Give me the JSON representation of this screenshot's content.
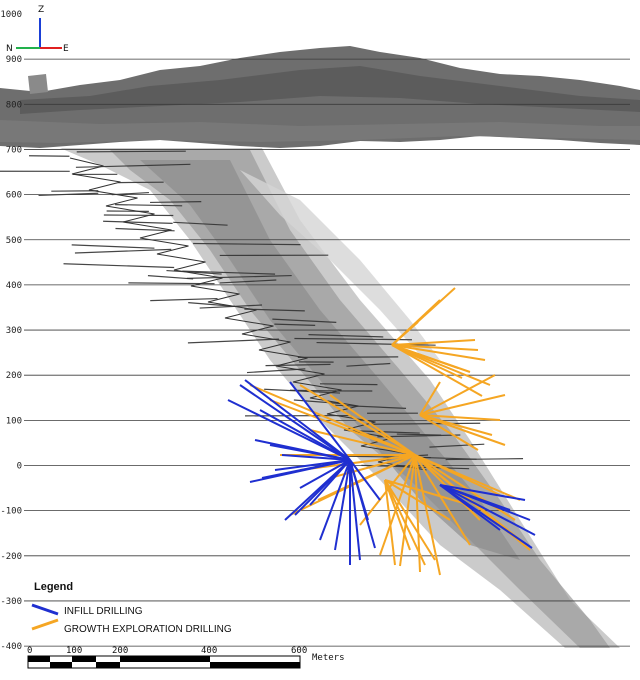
{
  "elevation_axis": {
    "ticks": [
      "1000",
      "900",
      "800",
      "700",
      "600",
      "500",
      "400",
      "300",
      "200",
      "100",
      "0",
      "-100",
      "-200",
      "-300",
      "-400"
    ]
  },
  "orientation": {
    "up": "Z",
    "left": "N",
    "right": "E",
    "colors": {
      "up": "#1a3fd6",
      "left": "#22b14c",
      "right": "#e02020"
    }
  },
  "legend": {
    "title": "Legend",
    "items": [
      {
        "label": "INFILL DRILLING",
        "color": "#1f2fd0"
      },
      {
        "label": "GROWTH EXPLORATION DRILLING",
        "color": "#f5a623"
      }
    ]
  },
  "scale_bar": {
    "labels": [
      "0",
      "100",
      "200",
      "400",
      "600"
    ],
    "unit": "Meters"
  },
  "colors": {
    "surface": "#6e6e6e",
    "orebody": "#a8a8a8",
    "gridline": "#3a3a3a",
    "existing_holes": "#333333"
  }
}
